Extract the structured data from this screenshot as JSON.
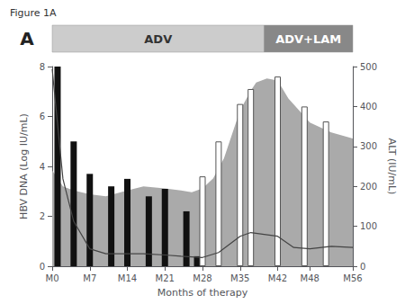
{
  "chart_data": {
    "type": "bar",
    "title": "Figure 1A",
    "annotations": [
      {
        "text": "A"
      },
      {
        "text": "ADV",
        "color": "#cccccc"
      },
      {
        "text": "ADV+LAM",
        "color": "#888888"
      }
    ],
    "xlabel": "Months of therapy",
    "ylabel": "HBV DNA (Log IU/mL)",
    "y2label": "ALT (IU/mL)",
    "xlim": [
      0,
      56
    ],
    "xticks": [
      {
        "value": 0,
        "label": "M0"
      },
      {
        "value": 7,
        "label": "M7"
      },
      {
        "value": 14,
        "label": "M14"
      },
      {
        "value": 21,
        "label": "M21"
      },
      {
        "value": 28,
        "label": "M28"
      },
      {
        "value": 35,
        "label": "M35"
      },
      {
        "value": 42,
        "label": "M42"
      },
      {
        "value": 48,
        "label": "M48"
      },
      {
        "value": 56,
        "label": "M56"
      }
    ],
    "ylim": [
      0,
      8
    ],
    "yticks": [
      0,
      2,
      4,
      6,
      8
    ],
    "y2lim": [
      0,
      500
    ],
    "y2ticks": [
      0,
      100,
      200,
      300,
      400,
      500
    ],
    "grid": false,
    "series": [
      {
        "type": "area",
        "axis": "y2",
        "color": "#aaaaaa",
        "x": [
          0,
          2,
          4,
          7,
          10,
          14,
          17,
          21,
          24,
          26,
          28,
          30,
          32,
          35,
          37,
          38,
          40,
          42,
          44,
          46,
          48,
          52,
          56
        ],
        "values": [
          240,
          200,
          190,
          180,
          175,
          190,
          200,
          195,
          190,
          185,
          195,
          220,
          270,
          390,
          440,
          460,
          470,
          465,
          420,
          390,
          360,
          335,
          320
        ]
      },
      {
        "type": "bar",
        "color": "#111111",
        "x": [
          1,
          4,
          7,
          11,
          14,
          18,
          21,
          25,
          27
        ],
        "values": [
          8.0,
          5.0,
          3.7,
          3.2,
          3.5,
          2.8,
          3.1,
          2.2,
          0.4
        ]
      },
      {
        "type": "bar",
        "color": "#ffffff",
        "x": [
          28,
          31,
          35,
          37,
          42,
          47,
          51
        ],
        "values": [
          3.6,
          5.0,
          6.5,
          7.1,
          7.6,
          6.4,
          5.8
        ]
      },
      {
        "type": "line",
        "color": "#444444",
        "marker": "none",
        "x": [
          0,
          2,
          4,
          7,
          10,
          14,
          17,
          21,
          24,
          28,
          31,
          35,
          37,
          42,
          45,
          48,
          52,
          56
        ],
        "values": [
          7.9,
          3.5,
          1.8,
          0.7,
          0.5,
          0.5,
          0.5,
          0.45,
          0.4,
          0.35,
          0.55,
          1.2,
          1.35,
          1.2,
          0.75,
          0.7,
          0.8,
          0.75
        ]
      }
    ]
  }
}
